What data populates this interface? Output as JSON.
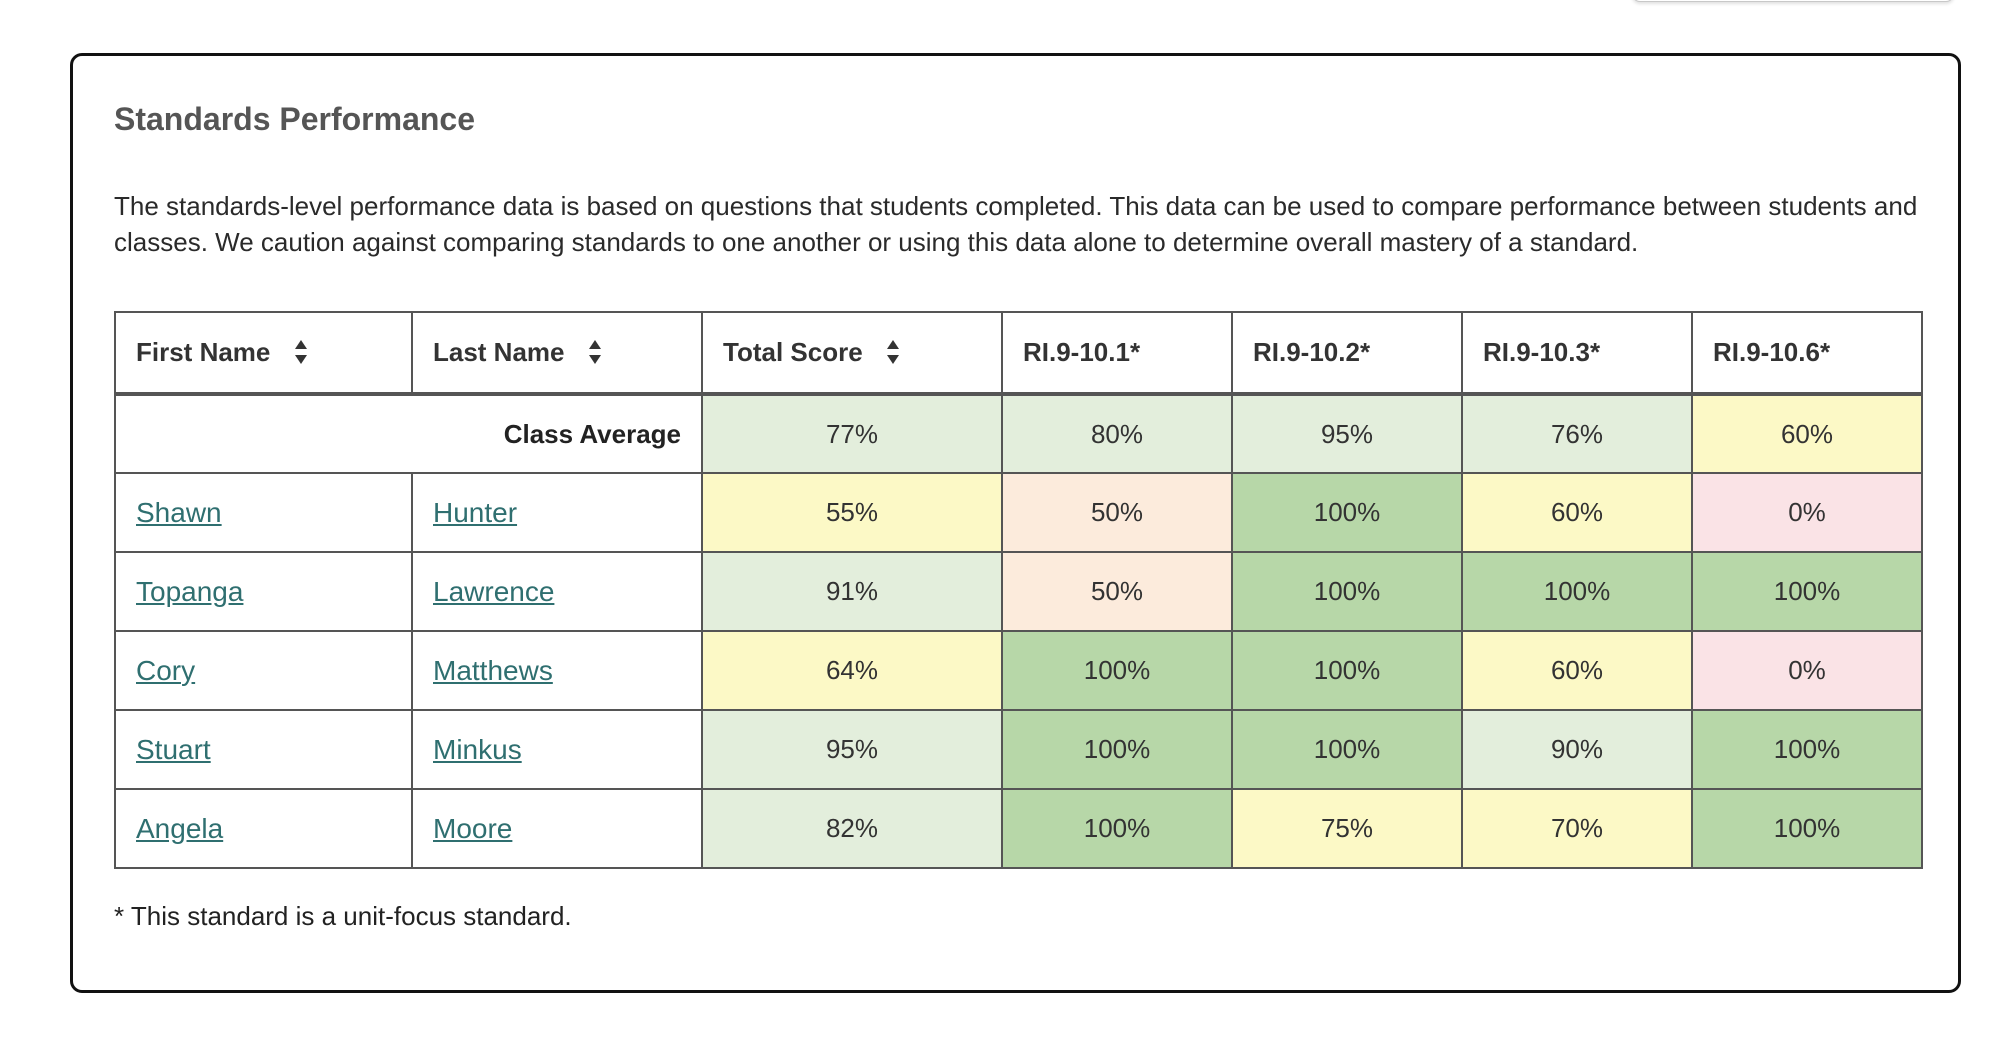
{
  "panel": {
    "title": "Standards Performance",
    "description": "The standards-level performance data is based on questions that students completed. This data can be used to compare performance between students and classes. We caution against comparing standards to one another or using this data alone to determine overall mastery of a standard.",
    "footnote": "* This standard is a unit-focus standard."
  },
  "table": {
    "headers": {
      "first_name": "First Name",
      "last_name": "Last Name",
      "total_score": "Total Score",
      "std1": "RI.9-10.1*",
      "std2": "RI.9-10.2*",
      "std3": "RI.9-10.3*",
      "std4": "RI.9-10.6*"
    },
    "class_average": {
      "label": "Class Average",
      "total": "77%",
      "std1": "80%",
      "std2": "95%",
      "std3": "76%",
      "std4": "60%"
    },
    "rows": [
      {
        "first": "Shawn",
        "last": "Hunter",
        "total": "55%",
        "std1": "50%",
        "std2": "100%",
        "std3": "60%",
        "std4": "0%"
      },
      {
        "first": "Topanga",
        "last": "Lawrence",
        "total": "91%",
        "std1": "50%",
        "std2": "100%",
        "std3": "100%",
        "std4": "100%"
      },
      {
        "first": "Cory",
        "last": "Matthews",
        "total": "64%",
        "std1": "100%",
        "std2": "100%",
        "std3": "60%",
        "std4": "0%"
      },
      {
        "first": "Stuart",
        "last": "Minkus",
        "total": "95%",
        "std1": "100%",
        "std2": "100%",
        "std3": "90%",
        "std4": "100%"
      },
      {
        "first": "Angela",
        "last": "Moore",
        "total": "82%",
        "std1": "100%",
        "std2": "75%",
        "std3": "70%",
        "std4": "100%"
      }
    ]
  },
  "colors": {
    "green_dark": "#b7d7a8",
    "green_light": "#e3eedc",
    "yellow": "#fcf9c6",
    "peach": "#fcebdc",
    "pink": "#fae3e6",
    "link": "#2f6f70"
  },
  "icons": {
    "sort": "sort-icon"
  }
}
